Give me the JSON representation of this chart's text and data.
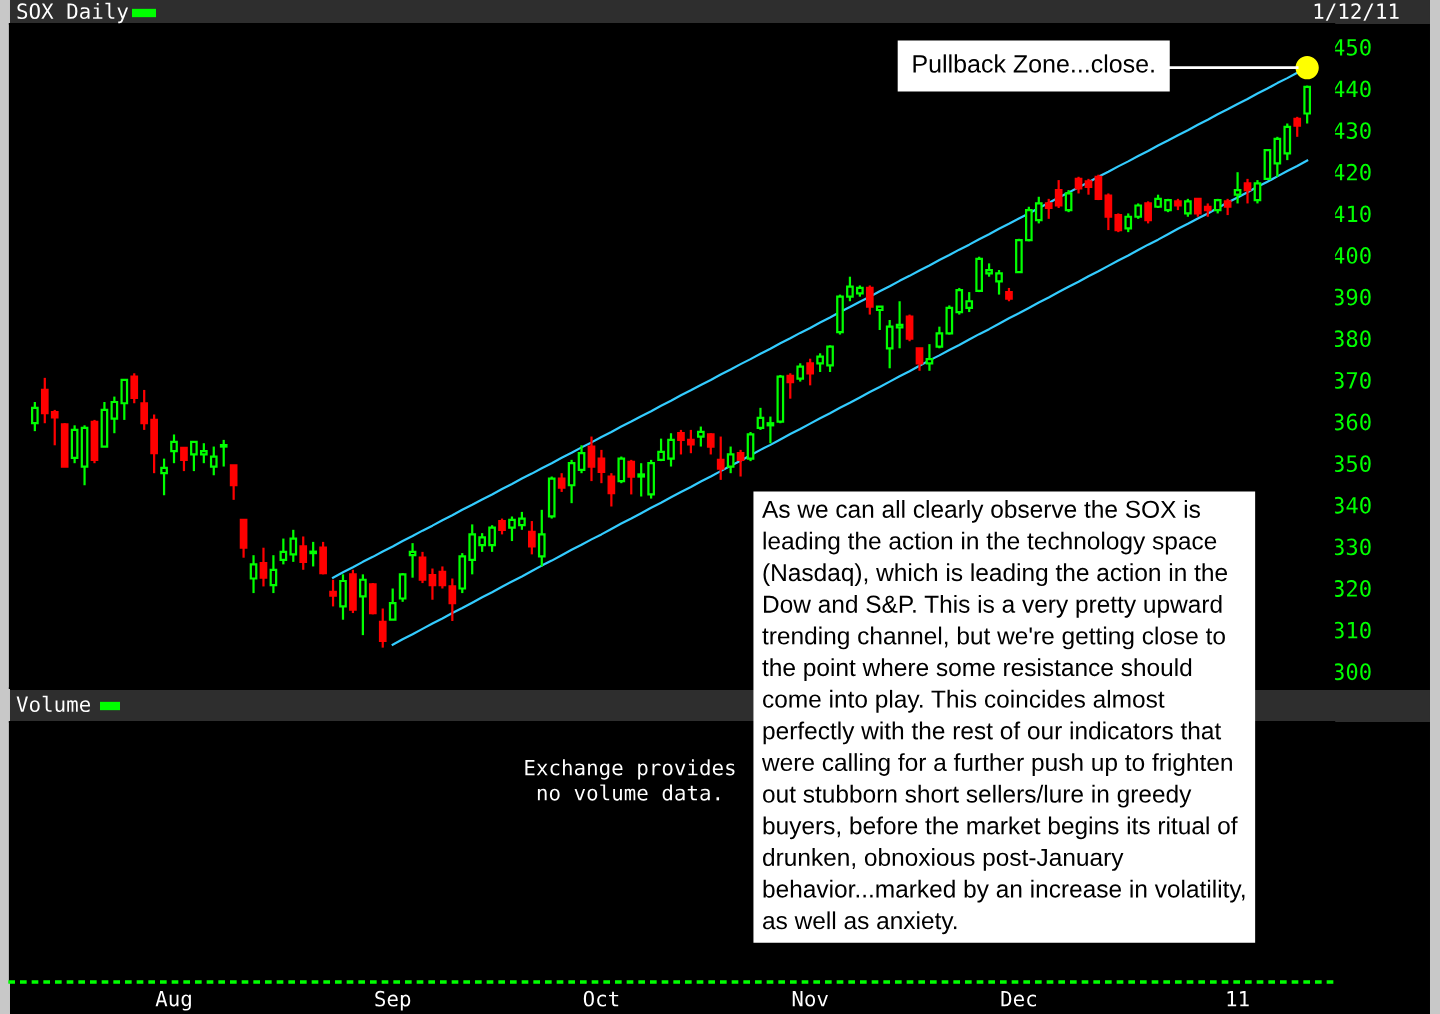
{
  "chart_data": [
    {
      "type": "candlestick",
      "title": "SOX Daily",
      "annotations": [
        "1/12/11",
        "Pullback Zone...close.",
        "As we can all clearly observe the SOX is\nleading the action in the technology space\n(Nasdaq), which is leading the action in the\nDow and S&P. This is a very pretty upward\ntrending channel, but we're getting close to\nthe point where some resistance should\ncome into play. This coincides almost\nperfectly with the rest of our indicators that\nwere calling for a further push up to frighten\nout stubborn short sellers/lure in greedy\nbuyers, before the market begins its ritual of\ndrunken, obnoxious post-January\nbehavior...marked by an increase in volatility,\nas well as anxiety."
      ],
      "categories": [
        null,
        null,
        null,
        null,
        null,
        null,
        null,
        null,
        null,
        null,
        null,
        null,
        null,
        null,
        null,
        null,
        null,
        null,
        null,
        null,
        null,
        null,
        null,
        null,
        null,
        null,
        null,
        null,
        null,
        null,
        null,
        null,
        null,
        null,
        null,
        null,
        null,
        null,
        null,
        null,
        null,
        null,
        null,
        null,
        null,
        null,
        null,
        null,
        null,
        null,
        null,
        null,
        null,
        null,
        null,
        null,
        null,
        null,
        null,
        null,
        null,
        null,
        null,
        null,
        null,
        null,
        null,
        null,
        null,
        null,
        null,
        null,
        null,
        null,
        null,
        null,
        null,
        null,
        null,
        null,
        null,
        null,
        null,
        null,
        null,
        null,
        null,
        null,
        null,
        null,
        null,
        null,
        null,
        null,
        null,
        null,
        null,
        null,
        null,
        null,
        null,
        null,
        null,
        null,
        null,
        null,
        null,
        null,
        null,
        null,
        null,
        null,
        null,
        null,
        null,
        null,
        null,
        null,
        null,
        null,
        null,
        null,
        null,
        null,
        null,
        null,
        null,
        null,
        null
      ],
      "ohlc": [
        [
          359.6,
          364.7,
          357.7,
          363.3
        ],
        [
          367.6,
          370.5,
          359.6,
          362.0
        ],
        [
          362.3,
          362.8,
          354.3,
          361.0
        ],
        [
          359.3,
          359.6,
          349.2,
          349.2
        ],
        [
          351.3,
          359.1,
          350.0,
          358.0
        ],
        [
          349.2,
          359.1,
          344.7,
          358.5
        ],
        [
          359.9,
          360.4,
          350.0,
          350.8
        ],
        [
          354.0,
          364.7,
          354.0,
          362.8
        ],
        [
          360.7,
          366.0,
          357.2,
          364.7
        ],
        [
          364.4,
          370.0,
          360.4,
          370.0
        ],
        [
          370.8,
          371.6,
          364.4,
          365.7
        ],
        [
          364.4,
          367.6,
          358.0,
          359.6
        ],
        [
          360.4,
          361.7,
          347.6,
          352.4
        ],
        [
          347.6,
          351.1,
          342.3,
          348.9
        ],
        [
          352.9,
          356.9,
          350.0,
          355.1
        ],
        [
          353.7,
          353.7,
          348.1,
          350.8
        ],
        [
          352.1,
          355.3,
          348.1,
          355.1
        ],
        [
          352.1,
          354.8,
          350.0,
          352.9
        ],
        [
          349.2,
          354.0,
          347.1,
          351.6
        ],
        [
          354.0,
          355.6,
          349.2,
          354.3
        ],
        [
          349.5,
          349.5,
          341.2,
          344.7
        ],
        [
          336.4,
          336.4,
          327.3,
          329.7
        ],
        [
          322.3,
          327.9,
          318.8,
          325.7
        ],
        [
          326.0,
          329.7,
          320.4,
          322.5
        ],
        [
          320.7,
          327.9,
          318.8,
          324.4
        ],
        [
          326.8,
          331.9,
          325.7,
          328.7
        ],
        [
          328.1,
          334.0,
          326.3,
          331.9
        ],
        [
          330.0,
          332.4,
          324.4,
          326.3
        ],
        [
          328.4,
          331.1,
          325.2,
          328.7
        ],
        [
          329.7,
          331.1,
          323.3,
          323.6
        ],
        [
          319.1,
          322.0,
          315.6,
          318.2
        ],
        [
          315.6,
          323.3,
          312.4,
          321.7
        ],
        [
          323.3,
          324.4,
          314.0,
          314.8
        ],
        [
          318.0,
          323.3,
          308.7,
          322.0
        ],
        [
          320.9,
          321.2,
          313.7,
          314.0
        ],
        [
          311.9,
          315.1,
          305.7,
          307.3
        ],
        [
          312.4,
          319.9,
          312.4,
          316.4
        ],
        [
          317.5,
          323.6,
          316.7,
          323.3
        ],
        [
          327.9,
          330.8,
          322.5,
          328.7
        ],
        [
          327.3,
          328.7,
          321.2,
          322.0
        ],
        [
          323.1,
          324.7,
          317.2,
          320.7
        ],
        [
          323.9,
          325.2,
          319.9,
          320.7
        ],
        [
          320.4,
          322.3,
          312.1,
          316.4
        ],
        [
          319.9,
          328.4,
          318.8,
          327.6
        ],
        [
          326.8,
          335.3,
          323.3,
          332.9
        ],
        [
          330.3,
          333.2,
          328.7,
          332.2
        ],
        [
          330.3,
          335.1,
          328.7,
          334.5
        ],
        [
          336.1,
          336.7,
          332.9,
          334.0
        ],
        [
          334.5,
          337.2,
          331.3,
          336.4
        ],
        [
          335.1,
          338.3,
          334.0,
          336.7
        ],
        [
          333.5,
          336.1,
          328.1,
          330.0
        ],
        [
          327.6,
          338.8,
          325.2,
          332.9
        ],
        [
          337.2,
          346.8,
          336.7,
          346.3
        ],
        [
          346.3,
          347.6,
          343.1,
          344.1
        ],
        [
          344.7,
          350.8,
          340.4,
          350.0
        ],
        [
          348.4,
          354.3,
          347.6,
          352.4
        ],
        [
          354.0,
          356.4,
          345.7,
          349.2
        ],
        [
          351.1,
          353.2,
          345.2,
          347.9
        ],
        [
          346.8,
          347.6,
          339.6,
          342.8
        ],
        [
          345.7,
          351.6,
          345.2,
          351.1
        ],
        [
          350.3,
          350.8,
          342.5,
          346.8
        ],
        [
          346.8,
          350.0,
          342.0,
          347.3
        ],
        [
          342.5,
          350.8,
          341.5,
          350.0
        ],
        [
          350.8,
          355.9,
          350.5,
          352.7
        ],
        [
          351.1,
          357.2,
          349.2,
          355.6
        ],
        [
          357.2,
          358.0,
          352.1,
          355.6
        ],
        [
          355.6,
          358.0,
          352.4,
          354.5
        ],
        [
          356.4,
          358.8,
          354.0,
          357.5
        ],
        [
          356.9,
          357.2,
          352.1,
          354.0
        ],
        [
          350.8,
          356.4,
          346.0,
          348.7
        ],
        [
          349.2,
          354.0,
          347.6,
          352.1
        ],
        [
          352.4,
          353.2,
          346.8,
          350.8
        ],
        [
          351.1,
          357.5,
          350.5,
          356.9
        ],
        [
          358.5,
          363.3,
          358.0,
          360.9
        ],
        [
          359.1,
          361.2,
          354.8,
          359.6
        ],
        [
          360.0,
          371.2,
          359.6,
          370.8
        ],
        [
          371.0,
          371.6,
          365.5,
          369.5
        ],
        [
          370.3,
          374.0,
          369.6,
          373.2
        ],
        [
          374.0,
          375.1,
          368.7,
          371.6
        ],
        [
          374.0,
          376.4,
          371.9,
          375.6
        ],
        [
          373.5,
          378.3,
          371.9,
          378.0
        ],
        [
          381.5,
          390.5,
          380.9,
          390.0
        ],
        [
          390.0,
          394.8,
          388.9,
          392.4
        ],
        [
          390.8,
          392.7,
          390.0,
          392.1
        ],
        [
          392.1,
          392.7,
          385.7,
          387.6
        ],
        [
          386.8,
          387.6,
          382.0,
          387.6
        ],
        [
          377.6,
          384.4,
          372.8,
          382.8
        ],
        [
          382.6,
          388.9,
          377.6,
          383.2
        ],
        [
          385.2,
          385.7,
          379.3,
          379.9
        ],
        [
          377.6,
          377.6,
          372.2,
          374.0
        ],
        [
          374.0,
          378.6,
          372.2,
          375.0
        ],
        [
          378.0,
          382.8,
          377.6,
          381.2
        ],
        [
          381.2,
          387.9,
          380.9,
          387.3
        ],
        [
          386.3,
          392.1,
          385.7,
          391.6
        ],
        [
          387.3,
          391.1,
          386.3,
          388.9
        ],
        [
          391.4,
          399.6,
          391.1,
          399.1
        ],
        [
          395.6,
          398.0,
          394.8,
          396.4
        ],
        [
          393.7,
          396.4,
          390.5,
          395.6
        ],
        [
          391.1,
          392.1,
          388.9,
          389.5
        ],
        [
          395.9,
          403.9,
          395.9,
          403.6
        ],
        [
          403.6,
          411.6,
          403.3,
          410.8
        ],
        [
          408.4,
          414.0,
          407.6,
          412.4
        ],
        [
          412.4,
          413.5,
          408.7,
          411.3
        ],
        [
          415.6,
          418.0,
          411.3,
          411.9
        ],
        [
          410.8,
          415.6,
          410.3,
          414.8
        ],
        [
          418.3,
          418.8,
          414.8,
          416.0
        ],
        [
          417.7,
          418.3,
          414.5,
          416.4
        ],
        [
          418.8,
          419.3,
          413.2,
          413.5
        ],
        [
          414.3,
          414.8,
          406.0,
          409.2
        ],
        [
          409.6,
          410.0,
          405.5,
          406.0
        ],
        [
          406.4,
          410.0,
          405.5,
          409.2
        ],
        [
          409.2,
          412.4,
          408.7,
          411.9
        ],
        [
          412.4,
          412.9,
          407.6,
          408.4
        ],
        [
          411.6,
          414.5,
          411.3,
          413.5
        ],
        [
          410.8,
          413.5,
          410.3,
          413.2
        ],
        [
          412.9,
          413.5,
          410.8,
          411.9
        ],
        [
          410.0,
          413.5,
          409.2,
          412.9
        ],
        [
          413.5,
          413.5,
          409.2,
          410.0
        ],
        [
          411.6,
          412.4,
          409.2,
          410.8
        ],
        [
          410.8,
          413.5,
          410.0,
          413.2
        ],
        [
          412.9,
          413.5,
          409.6,
          411.6
        ],
        [
          414.5,
          419.9,
          412.4,
          415.6
        ],
        [
          417.2,
          418.3,
          412.4,
          415.6
        ],
        [
          413.2,
          418.0,
          412.4,
          417.2
        ],
        [
          418.3,
          425.2,
          418.0,
          425.2
        ],
        [
          422.0,
          428.4,
          418.8,
          427.9
        ],
        [
          424.4,
          431.6,
          422.8,
          430.8
        ],
        [
          432.7,
          433.2,
          428.4,
          431.1
        ],
        [
          434.0,
          440.7,
          431.6,
          440.4
        ]
      ],
      "colors": [
        "#00ff00",
        "#ff0000",
        "#ff0000",
        "#ff0000",
        "#00ff00",
        "#00ff00",
        "#ff0000",
        "#00ff00",
        "#00ff00",
        "#00ff00",
        "#ff0000",
        "#ff0000",
        "#ff0000",
        "#00ff00",
        "#00ff00",
        "#ff0000",
        "#00ff00",
        "#00ff00",
        "#00ff00",
        "#00ff00",
        "#ff0000",
        "#ff0000",
        "#00ff00",
        "#ff0000",
        "#00ff00",
        "#00ff00",
        "#00ff00",
        "#ff0000",
        "#00ff00",
        "#ff0000",
        "#ff0000",
        "#00ff00",
        "#ff0000",
        "#00ff00",
        "#ff0000",
        "#ff0000",
        "#00ff00",
        "#00ff00",
        "#00ff00",
        "#ff0000",
        "#ff0000",
        "#ff0000",
        "#ff0000",
        "#00ff00",
        "#00ff00",
        "#00ff00",
        "#00ff00",
        "#ff0000",
        "#00ff00",
        "#00ff00",
        "#ff0000",
        "#00ff00",
        "#00ff00",
        "#ff0000",
        "#00ff00",
        "#00ff00",
        "#ff0000",
        "#ff0000",
        "#ff0000",
        "#00ff00",
        "#ff0000",
        "#00ff00",
        "#00ff00",
        "#00ff00",
        "#00ff00",
        "#ff0000",
        "#ff0000",
        "#00ff00",
        "#ff0000",
        "#ff0000",
        "#00ff00",
        "#ff0000",
        "#00ff00",
        "#00ff00",
        "#00ff00",
        "#00ff00",
        "#ff0000",
        "#00ff00",
        "#ff0000",
        "#00ff00",
        "#00ff00",
        "#00ff00",
        "#00ff00",
        "#00ff00",
        "#ff0000",
        "#00ff00",
        "#00ff00",
        "#00ff00",
        "#ff0000",
        "#ff0000",
        "#00ff00",
        "#00ff00",
        "#00ff00",
        "#00ff00",
        "#00ff00",
        "#00ff00",
        "#00ff00",
        "#00ff00",
        "#ff0000",
        "#00ff00",
        "#00ff00",
        "#00ff00",
        "#ff0000",
        "#ff0000",
        "#00ff00",
        "#ff0000",
        "#ff0000",
        "#ff0000",
        "#ff0000",
        "#ff0000",
        "#00ff00",
        "#00ff00",
        "#ff0000",
        "#00ff00",
        "#00ff00",
        "#ff0000",
        "#00ff00",
        "#ff0000",
        "#ff0000",
        "#00ff00",
        "#ff0000",
        "#00ff00",
        "#ff0000",
        "#00ff00",
        "#00ff00",
        "#00ff00",
        "#00ff00",
        "#ff0000",
        "#00ff00"
      ],
      "series": [
        {
          "type": "line",
          "color": "#33ccff",
          "values": [
            null,
            null,
            null,
            null,
            null,
            null,
            null,
            null,
            null,
            null,
            null,
            null,
            null,
            null,
            null,
            null,
            null,
            null,
            null,
            null,
            null,
            null,
            null,
            null,
            null,
            null,
            null,
            null,
            null,
            null,
            322.5,
            323.8,
            325.0,
            326.3,
            327.5,
            328.8,
            330.0,
            331.3,
            332.5,
            333.8,
            335.0,
            336.3,
            337.5,
            338.8,
            340.0,
            341.3,
            342.5,
            343.8,
            345.0,
            346.3,
            347.5,
            348.8,
            350.0,
            351.3,
            352.5,
            353.8,
            355.0,
            356.3,
            357.5,
            358.8,
            360.0,
            361.3,
            362.5,
            363.8,
            365.0,
            366.3,
            367.5,
            368.8,
            370.0,
            371.3,
            372.5,
            373.8,
            375.0,
            376.3,
            377.5,
            378.8,
            380.0,
            381.3,
            382.5,
            383.8,
            385.0,
            386.3,
            387.5,
            388.8,
            390.0,
            391.3,
            392.5,
            393.8,
            395.0,
            396.3,
            397.5,
            398.8,
            400.0,
            401.3,
            402.5,
            403.8,
            405.0,
            406.3,
            407.5,
            408.8,
            410.0,
            411.3,
            412.5,
            413.8,
            415.0,
            416.3,
            417.5,
            418.8,
            420.0,
            421.3,
            422.5,
            423.8,
            425.0,
            426.3,
            427.5,
            428.8,
            430.0,
            431.3,
            432.5,
            433.8,
            435.0,
            436.3,
            437.5,
            438.8,
            440.0,
            441.3,
            442.5,
            443.8,
            445.0
          ]
        },
        {
          "type": "line",
          "color": "#33ccff",
          "values": [
            null,
            null,
            null,
            null,
            null,
            null,
            null,
            null,
            null,
            null,
            null,
            null,
            null,
            null,
            null,
            null,
            null,
            null,
            null,
            null,
            null,
            null,
            null,
            null,
            null,
            null,
            null,
            null,
            null,
            null,
            null,
            null,
            null,
            null,
            null,
            null,
            306.4,
            307.7,
            308.9,
            310.2,
            311.5,
            312.7,
            314.0,
            315.2,
            316.5,
            317.8,
            319.0,
            320.3,
            321.6,
            322.8,
            324.1,
            325.4,
            326.6,
            327.9,
            329.2,
            330.4,
            331.7,
            332.9,
            334.2,
            335.5,
            336.7,
            338.0,
            339.3,
            340.5,
            341.8,
            343.1,
            344.3,
            345.6,
            346.8,
            348.1,
            349.4,
            350.6,
            351.9,
            353.2,
            354.4,
            355.7,
            357.0,
            358.2,
            359.5,
            360.8,
            362.0,
            363.3,
            364.5,
            365.8,
            367.1,
            368.3,
            369.6,
            370.9,
            372.1,
            373.4,
            374.7,
            375.9,
            377.2,
            378.4,
            379.7,
            381.0,
            382.2,
            383.5,
            384.8,
            386.0,
            387.3,
            388.6,
            389.8,
            391.1,
            392.4,
            393.6,
            394.9,
            396.1,
            397.4,
            398.7,
            399.9,
            401.2,
            402.5,
            403.7,
            405.0,
            406.3,
            407.5,
            408.8,
            410.0,
            411.3,
            412.6,
            413.8,
            415.1,
            416.4,
            417.6,
            418.9,
            420.2,
            421.4,
            422.7
          ]
        },
        {
          "type": "scatter",
          "color": "#ffff00",
          "marker": "circle",
          "values": [
            null,
            null,
            null,
            null,
            null,
            null,
            null,
            null,
            null,
            null,
            null,
            null,
            null,
            null,
            null,
            null,
            null,
            null,
            null,
            null,
            null,
            null,
            null,
            null,
            null,
            null,
            null,
            null,
            null,
            null,
            null,
            null,
            null,
            null,
            null,
            null,
            null,
            null,
            null,
            null,
            null,
            null,
            null,
            null,
            null,
            null,
            null,
            null,
            null,
            null,
            null,
            null,
            null,
            null,
            null,
            null,
            null,
            null,
            null,
            null,
            null,
            null,
            null,
            null,
            null,
            null,
            null,
            null,
            null,
            null,
            null,
            null,
            null,
            null,
            null,
            null,
            null,
            null,
            null,
            null,
            null,
            null,
            null,
            null,
            null,
            null,
            null,
            null,
            null,
            null,
            null,
            null,
            null,
            null,
            null,
            null,
            null,
            null,
            null,
            null,
            null,
            null,
            null,
            null,
            null,
            null,
            null,
            null,
            null,
            null,
            null,
            null,
            null,
            null,
            null,
            null,
            null,
            null,
            null,
            null,
            null,
            null,
            null,
            null,
            null,
            null,
            null,
            null,
            445
          ]
        }
      ],
      "ylim": [
        296,
        455.5
      ],
      "yticks": [
        300,
        310,
        320,
        330,
        340,
        350,
        360,
        370,
        380,
        390,
        400,
        410,
        420,
        430,
        440,
        450
      ],
      "tick_labels": "y"
    },
    {
      "type": "other",
      "title": "Volume",
      "annotations": [
        "Exchange provides\nno volume data."
      ],
      "categories": [
        null,
        null,
        null,
        null,
        null,
        null,
        null,
        null,
        null,
        null,
        null,
        null,
        null,
        null,
        "Aug",
        null,
        null,
        null,
        null,
        null,
        null,
        null,
        null,
        null,
        null,
        null,
        null,
        null,
        null,
        null,
        null,
        null,
        null,
        null,
        null,
        null,
        "Sep",
        null,
        null,
        null,
        null,
        null,
        null,
        null,
        null,
        null,
        null,
        null,
        null,
        null,
        null,
        null,
        null,
        null,
        null,
        null,
        null,
        "Oct",
        null,
        null,
        null,
        null,
        null,
        null,
        null,
        null,
        null,
        null,
        null,
        null,
        null,
        null,
        null,
        null,
        null,
        null,
        null,
        null,
        "Nov",
        null,
        null,
        null,
        null,
        null,
        null,
        null,
        null,
        null,
        null,
        null,
        null,
        null,
        null,
        null,
        null,
        null,
        null,
        null,
        null,
        "Dec",
        null,
        null,
        null,
        null,
        null,
        null,
        null,
        null,
        null,
        null,
        null,
        null,
        null,
        null,
        null,
        null,
        null,
        null,
        null,
        null,
        null,
        "11",
        null,
        null,
        null,
        null,
        null,
        null,
        null
      ]
    }
  ]
}
